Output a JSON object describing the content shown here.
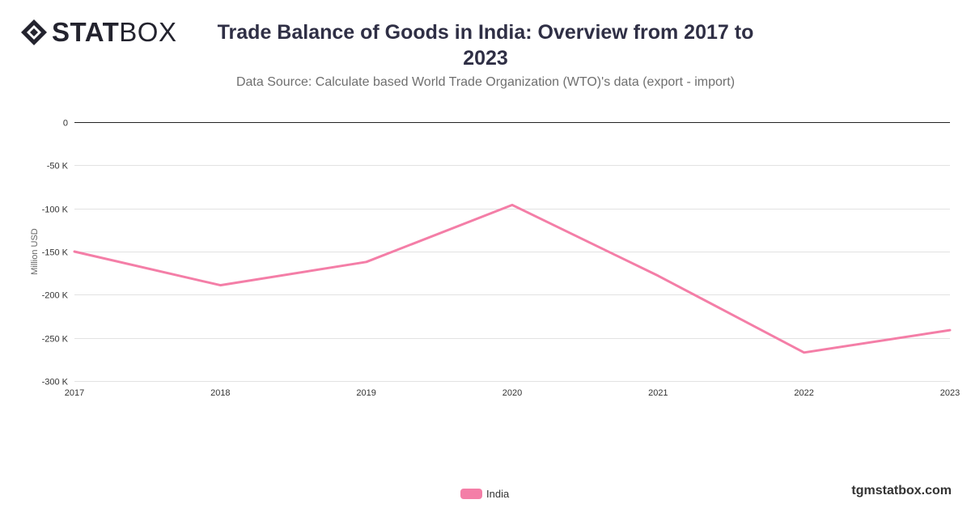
{
  "brand": {
    "logo_bold": "STAT",
    "logo_light": "BOX",
    "watermark": "tgmstatbox.com"
  },
  "colors": {
    "series": "#f47ea7",
    "grid": "#e2e2e2",
    "zero_line": "#222222",
    "title": "#2f2f45"
  },
  "chart_data": {
    "type": "line",
    "title": "Trade Balance of Goods in India: Overview from 2017 to 2023",
    "subtitle": "Data Source: Calculate based World Trade Organization (WTO)'s data (export - import)",
    "xlabel": "",
    "ylabel": "Million USD",
    "x": [
      "2017",
      "2018",
      "2019",
      "2020",
      "2021",
      "2022",
      "2023"
    ],
    "series": [
      {
        "name": "India",
        "color": "#f47ea7",
        "values": [
          -150000,
          -189000,
          -162000,
          -96000,
          -178000,
          -267000,
          -241000
        ]
      }
    ],
    "ylim": [
      -300000,
      0
    ],
    "yticks": [
      0,
      -50000,
      -100000,
      -150000,
      -200000,
      -250000,
      -300000
    ],
    "ytick_labels": [
      "0",
      "-50 K",
      "-100 K",
      "-150 K",
      "-200 K",
      "-250 K",
      "-300 K"
    ],
    "grid": true,
    "legend_position": "bottom-center"
  }
}
